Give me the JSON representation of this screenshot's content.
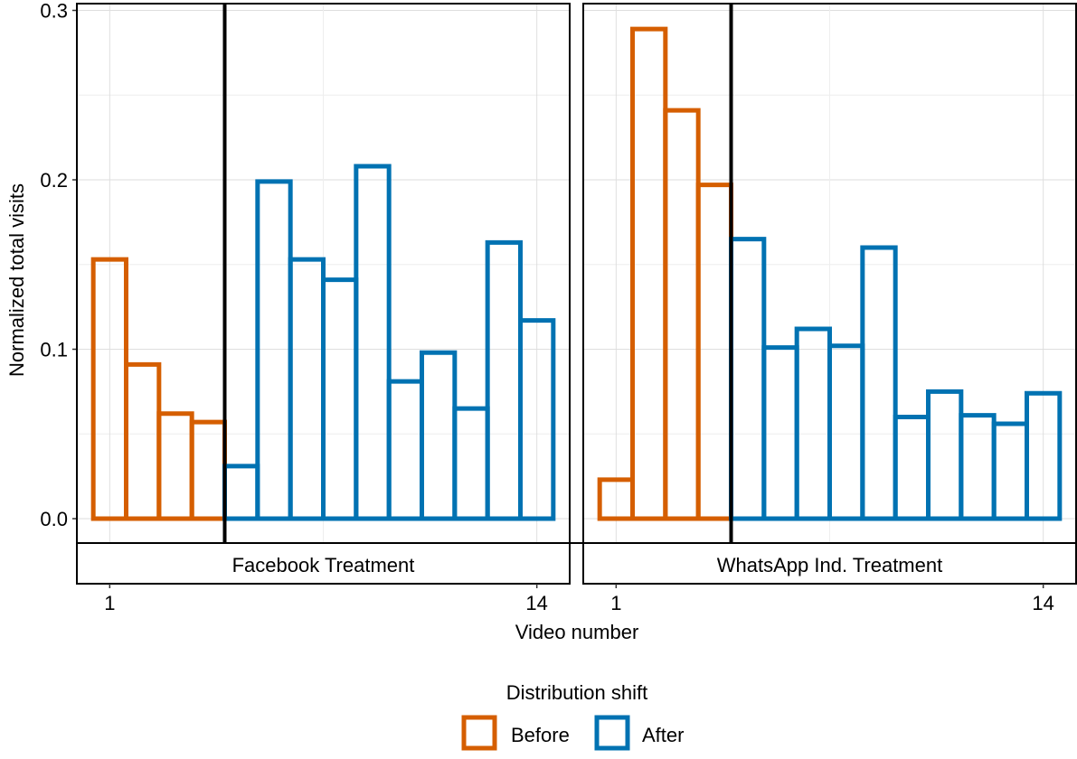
{
  "chart_data": {
    "type": "bar",
    "ylabel": "Normalized total visits",
    "xlabel": "Video number",
    "ylim": [
      0,
      0.3
    ],
    "yticks": [
      "0.0",
      "0.1",
      "0.2",
      "0.3"
    ],
    "xlim": [
      0,
      15
    ],
    "xticks": [
      1,
      14
    ],
    "grid": true,
    "legend": {
      "title": "Distribution shift",
      "position": "bottom",
      "entries": [
        {
          "label": "Before",
          "color": "#D55E00"
        },
        {
          "label": "After",
          "color": "#0072B2"
        }
      ]
    },
    "panels": [
      {
        "label": "Facebook Treatment",
        "shift_after_video": 4,
        "bars": [
          {
            "video": 1,
            "value": 0.153,
            "group": "Before"
          },
          {
            "video": 2,
            "value": 0.091,
            "group": "Before"
          },
          {
            "video": 3,
            "value": 0.062,
            "group": "Before"
          },
          {
            "video": 4,
            "value": 0.057,
            "group": "Before"
          },
          {
            "video": 5,
            "value": 0.031,
            "group": "After"
          },
          {
            "video": 6,
            "value": 0.199,
            "group": "After"
          },
          {
            "video": 7,
            "value": 0.153,
            "group": "After"
          },
          {
            "video": 8,
            "value": 0.141,
            "group": "After"
          },
          {
            "video": 9,
            "value": 0.208,
            "group": "After"
          },
          {
            "video": 10,
            "value": 0.081,
            "group": "After"
          },
          {
            "video": 11,
            "value": 0.098,
            "group": "After"
          },
          {
            "video": 12,
            "value": 0.065,
            "group": "After"
          },
          {
            "video": 13,
            "value": 0.163,
            "group": "After"
          },
          {
            "video": 14,
            "value": 0.117,
            "group": "After"
          }
        ]
      },
      {
        "label": "WhatsApp Ind. Treatment",
        "shift_after_video": 4,
        "bars": [
          {
            "video": 1,
            "value": 0.023,
            "group": "Before"
          },
          {
            "video": 2,
            "value": 0.289,
            "group": "Before"
          },
          {
            "video": 3,
            "value": 0.241,
            "group": "Before"
          },
          {
            "video": 4,
            "value": 0.197,
            "group": "Before"
          },
          {
            "video": 5,
            "value": 0.165,
            "group": "After"
          },
          {
            "video": 6,
            "value": 0.101,
            "group": "After"
          },
          {
            "video": 7,
            "value": 0.112,
            "group": "After"
          },
          {
            "video": 8,
            "value": 0.102,
            "group": "After"
          },
          {
            "video": 9,
            "value": 0.16,
            "group": "After"
          },
          {
            "video": 10,
            "value": 0.06,
            "group": "After"
          },
          {
            "video": 11,
            "value": 0.075,
            "group": "After"
          },
          {
            "video": 12,
            "value": 0.061,
            "group": "After"
          },
          {
            "video": 13,
            "value": 0.056,
            "group": "After"
          },
          {
            "video": 14,
            "value": 0.074,
            "group": "After"
          }
        ]
      }
    ]
  }
}
